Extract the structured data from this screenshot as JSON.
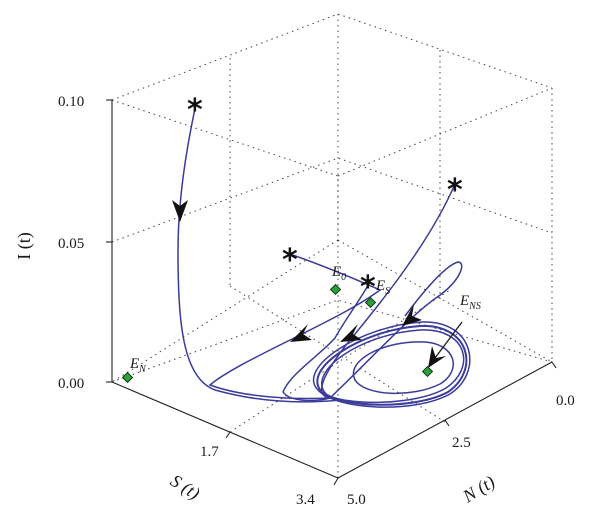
{
  "chart_data": {
    "type": "line",
    "projection": "3d",
    "title": "",
    "axes": {
      "N": {
        "label": "N (t)",
        "ticks": [
          "0.0",
          "2.5",
          "5.0"
        ],
        "range": [
          0,
          5
        ]
      },
      "S": {
        "label": "S (t)",
        "ticks": [
          "1.7",
          "3.4"
        ],
        "range": [
          0,
          3.4
        ]
      },
      "I": {
        "label": "I (t)",
        "ticks": [
          "0.00",
          "0.05",
          "0.10"
        ],
        "range": [
          0,
          0.1
        ]
      }
    },
    "grid": true,
    "series": [
      {
        "start": [
          0.6,
          2.9,
          0.1
        ],
        "end": "limit cycle around E_NS"
      },
      {
        "start": [
          1.0,
          0.6,
          0.05
        ],
        "end": "limit cycle around E_NS"
      },
      {
        "start": [
          2.4,
          0.4,
          0.045
        ],
        "end": "limit cycle around E_NS"
      },
      {
        "start": [
          3.6,
          0.2,
          0.1
        ],
        "end": "limit cycle around E_NS"
      }
    ],
    "equilibria": [
      {
        "name": "E",
        "sub": "N",
        "point": [
          0.0,
          3.4,
          0.0
        ]
      },
      {
        "name": "E",
        "sub": "0",
        "point": [
          1.6,
          0.6,
          0.0
        ]
      },
      {
        "name": "E",
        "sub": "S",
        "point": [
          1.9,
          0.5,
          0.0
        ]
      },
      {
        "name": "E",
        "sub": "NS",
        "point": [
          3.5,
          1.2,
          0.0
        ]
      }
    ]
  }
}
